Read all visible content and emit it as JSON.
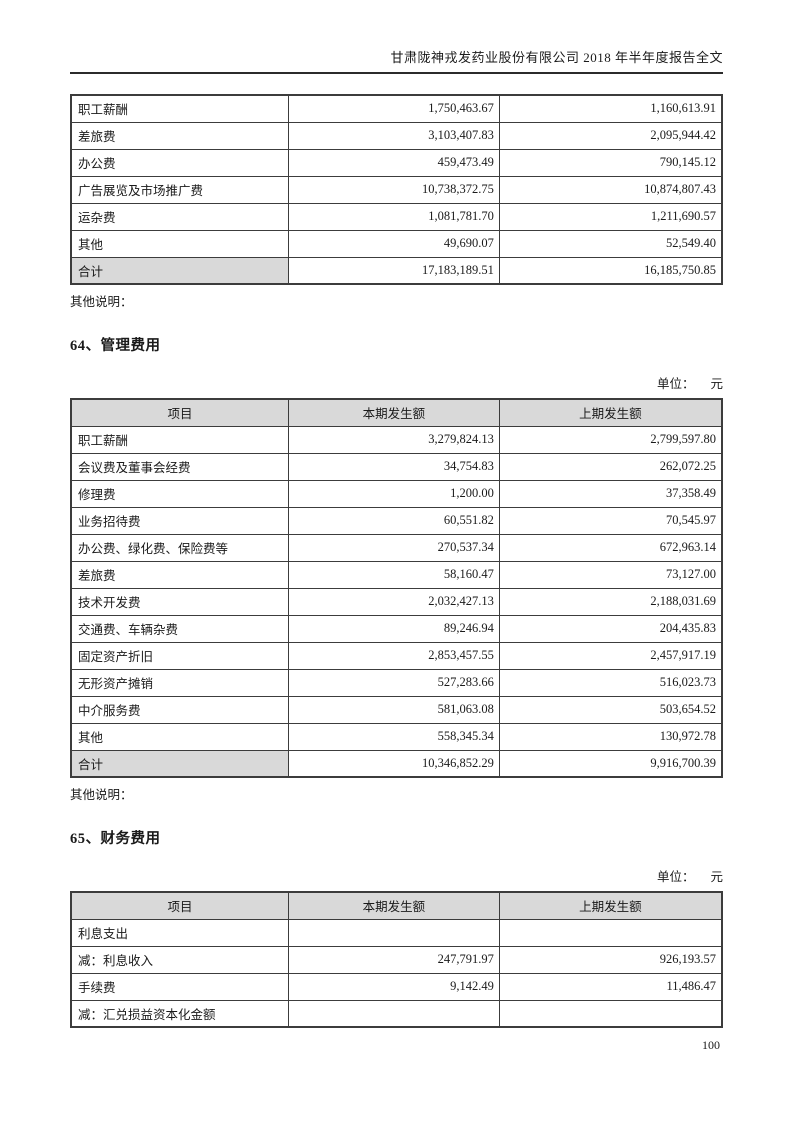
{
  "page": {
    "header_title": "甘肃陇神戎发药业股份有限公司 2018 年半年度报告全文",
    "page_number": "100"
  },
  "colors": {
    "table_header_bg": "#d9d9d9",
    "total_cell_bg": "#d9d9d9",
    "table_border": "#3c3c3c"
  },
  "table_continuation": {
    "rows": [
      {
        "label": "职工薪酬",
        "current": "1,750,463.67",
        "prior": "1,160,613.91"
      },
      {
        "label": "差旅费",
        "current": "3,103,407.83",
        "prior": "2,095,944.42"
      },
      {
        "label": "办公费",
        "current": "459,473.49",
        "prior": "790,145.12"
      },
      {
        "label": "广告展览及市场推广费",
        "current": "10,738,372.75",
        "prior": "10,874,807.43"
      },
      {
        "label": "运杂费",
        "current": "1,081,781.70",
        "prior": "1,211,690.57"
      },
      {
        "label": "其他",
        "current": "49,690.07",
        "prior": "52,549.40"
      },
      {
        "label": "合计",
        "current": "17,183,189.51",
        "prior": "16,185,750.85",
        "is_total": true
      }
    ],
    "note": "其他说明："
  },
  "section64": {
    "title": "64、管理费用",
    "unit_label": "单位：",
    "unit_value": "元",
    "columns": [
      "项目",
      "本期发生额",
      "上期发生额"
    ],
    "rows": [
      {
        "label": "职工薪酬",
        "current": "3,279,824.13",
        "prior": "2,799,597.80"
      },
      {
        "label": "会议费及董事会经费",
        "current": "34,754.83",
        "prior": "262,072.25"
      },
      {
        "label": "修理费",
        "current": "1,200.00",
        "prior": "37,358.49"
      },
      {
        "label": "业务招待费",
        "current": "60,551.82",
        "prior": "70,545.97"
      },
      {
        "label": "办公费、绿化费、保险费等",
        "current": "270,537.34",
        "prior": "672,963.14"
      },
      {
        "label": "差旅费",
        "current": "58,160.47",
        "prior": "73,127.00"
      },
      {
        "label": "技术开发费",
        "current": "2,032,427.13",
        "prior": "2,188,031.69"
      },
      {
        "label": "交通费、车辆杂费",
        "current": "89,246.94",
        "prior": "204,435.83"
      },
      {
        "label": "固定资产折旧",
        "current": "2,853,457.55",
        "prior": "2,457,917.19"
      },
      {
        "label": "无形资产摊销",
        "current": "527,283.66",
        "prior": "516,023.73"
      },
      {
        "label": "中介服务费",
        "current": "581,063.08",
        "prior": "503,654.52"
      },
      {
        "label": "其他",
        "current": "558,345.34",
        "prior": "130,972.78"
      },
      {
        "label": "合计",
        "current": "10,346,852.29",
        "prior": "9,916,700.39",
        "is_total": true
      }
    ],
    "note": "其他说明："
  },
  "section65": {
    "title": "65、财务费用",
    "unit_label": "单位：",
    "unit_value": "元",
    "columns": [
      "项目",
      "本期发生额",
      "上期发生额"
    ],
    "rows": [
      {
        "label": "利息支出",
        "current": "",
        "prior": ""
      },
      {
        "label": "减：利息收入",
        "current": "247,791.97",
        "prior": "926,193.57"
      },
      {
        "label": "手续费",
        "current": "9,142.49",
        "prior": "11,486.47"
      },
      {
        "label": "减：汇兑损益资本化金额",
        "current": "",
        "prior": ""
      }
    ]
  }
}
